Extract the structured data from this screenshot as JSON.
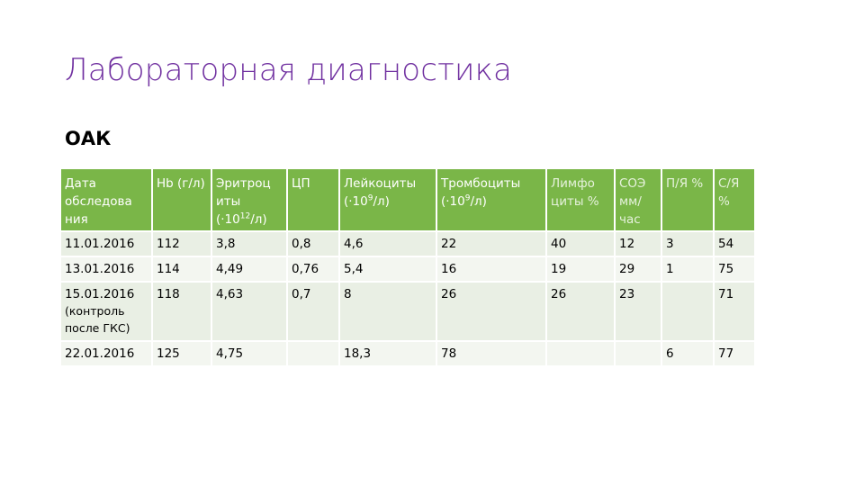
{
  "title": "Лабораторная диагностика",
  "subtitle": "ОАК",
  "colors": {
    "title": "#7030a0",
    "header_bg": "#7ab648",
    "row_bg": "#e9efe4"
  },
  "table": {
    "headers": [
      {
        "main": "Дата обследова ния"
      },
      {
        "main": "Hb (г/л)"
      },
      {
        "main": "Эритроц иты (·10",
        "sup": "12",
        "tail": "/л)"
      },
      {
        "main": "ЦП"
      },
      {
        "main": "Лейкоциты (·10",
        "sup": "9",
        "tail": "/л)"
      },
      {
        "main": "Тромбоциты (·10",
        "sup": "9",
        "tail": "/л)"
      },
      {
        "main": "Лимфо циты %"
      },
      {
        "main": "СОЭ мм/ час"
      },
      {
        "main": "П/Я %"
      },
      {
        "main": "С/Я %"
      }
    ],
    "rows": [
      {
        "date": "11.01.2016",
        "note": "",
        "hb": "112",
        "rbc": "3,8",
        "cp": "0,8",
        "wbc": "4,6",
        "plt": "22",
        "lymph": "40",
        "esr": "12",
        "band": "3",
        "seg": "54"
      },
      {
        "date": "13.01.2016",
        "note": "",
        "hb": "114",
        "rbc": "4,49",
        "cp": "0,76",
        "wbc": "5,4",
        "plt": "16",
        "lymph": "19",
        "esr": "29",
        "band": "1",
        "seg": "75"
      },
      {
        "date": "15.01.2016",
        "note": "(контроль после ГКС)",
        "hb": "118",
        "rbc": "4,63",
        "cp": "0,7",
        "wbc": "8",
        "plt": "26",
        "lymph": "26",
        "esr": "23",
        "band": "",
        "seg": "71"
      },
      {
        "date": "22.01.2016",
        "note": "",
        "hb": "125",
        "rbc": "4,75",
        "cp": "",
        "wbc": "18,3",
        "plt": "78",
        "lymph": "",
        "esr": "",
        "band": "6",
        "seg": "77"
      }
    ]
  }
}
